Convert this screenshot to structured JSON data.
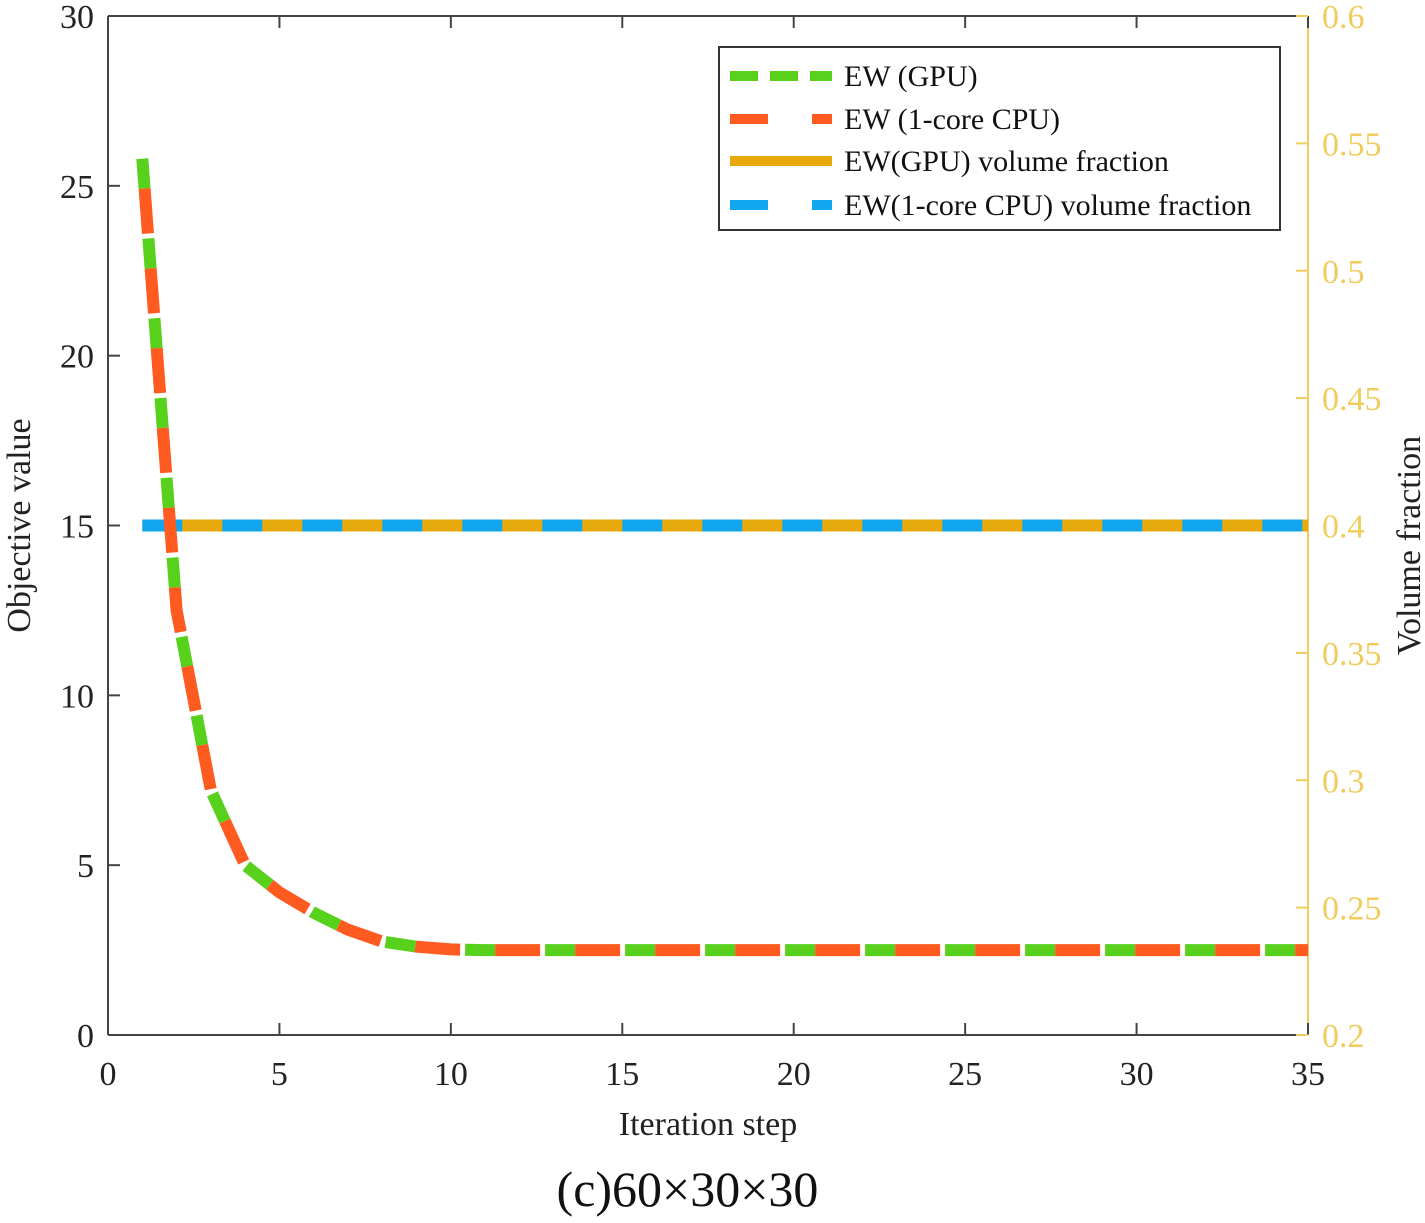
{
  "caption": "(c)60×30×30",
  "colors": {
    "gpu": "#57d11c",
    "cpu": "#ff5a1f",
    "gpu_vf": "#e8a90c",
    "cpu_vf": "#12a6ef",
    "right_axis": "#f0cc5c",
    "axis": "#444444"
  },
  "chart_data": {
    "type": "line",
    "title": "",
    "xlabel": "Iteration step",
    "ylabel": "Objective value",
    "y2label": "Volume fraction",
    "xlim": [
      0,
      35
    ],
    "ylim": [
      0,
      30
    ],
    "y2lim": [
      0.2,
      0.6
    ],
    "xticks": [
      0,
      5,
      10,
      15,
      20,
      25,
      30,
      35
    ],
    "yticks": [
      0,
      5,
      10,
      15,
      20,
      25,
      30
    ],
    "y2ticks": [
      0.2,
      0.25,
      0.3,
      0.35,
      0.4,
      0.45,
      0.5,
      0.55,
      0.6
    ],
    "grid": false,
    "legend_position": "top-right",
    "x": [
      1,
      2,
      3,
      4,
      5,
      6,
      7,
      8,
      9,
      10,
      11,
      12,
      13,
      14,
      15,
      16,
      17,
      18,
      19,
      20,
      21,
      22,
      23,
      24,
      25,
      26,
      27,
      28,
      29,
      30,
      31,
      32,
      33,
      34,
      35
    ],
    "series": [
      {
        "name": "EW (GPU)",
        "axis": "left",
        "style": "dashed",
        "values": [
          25.8,
          12.5,
          7.2,
          5.0,
          4.2,
          3.6,
          3.1,
          2.75,
          2.6,
          2.52,
          2.5,
          2.5,
          2.5,
          2.5,
          2.5,
          2.5,
          2.5,
          2.5,
          2.5,
          2.5,
          2.5,
          2.5,
          2.5,
          2.5,
          2.5,
          2.5,
          2.5,
          2.5,
          2.5,
          2.5,
          2.5,
          2.5,
          2.5,
          2.5,
          2.5
        ]
      },
      {
        "name": "EW (1-core CPU)",
        "axis": "left",
        "style": "dashed",
        "values": [
          25.8,
          12.5,
          7.2,
          5.0,
          4.2,
          3.6,
          3.1,
          2.75,
          2.6,
          2.52,
          2.5,
          2.5,
          2.5,
          2.5,
          2.5,
          2.5,
          2.5,
          2.5,
          2.5,
          2.5,
          2.5,
          2.5,
          2.5,
          2.5,
          2.5,
          2.5,
          2.5,
          2.5,
          2.5,
          2.5,
          2.5,
          2.5,
          2.5,
          2.5,
          2.5
        ]
      },
      {
        "name": "EW(GPU) volume fraction",
        "axis": "right",
        "style": "solid",
        "values": [
          0.4,
          0.4,
          0.4,
          0.4,
          0.4,
          0.4,
          0.4,
          0.4,
          0.4,
          0.4,
          0.4,
          0.4,
          0.4,
          0.4,
          0.4,
          0.4,
          0.4,
          0.4,
          0.4,
          0.4,
          0.4,
          0.4,
          0.4,
          0.4,
          0.4,
          0.4,
          0.4,
          0.4,
          0.4,
          0.4,
          0.4,
          0.4,
          0.4,
          0.4,
          0.4
        ]
      },
      {
        "name": "EW(1-core CPU) volume fraction",
        "axis": "right",
        "style": "dashed",
        "values": [
          0.4,
          0.4,
          0.4,
          0.4,
          0.4,
          0.4,
          0.4,
          0.4,
          0.4,
          0.4,
          0.4,
          0.4,
          0.4,
          0.4,
          0.4,
          0.4,
          0.4,
          0.4,
          0.4,
          0.4,
          0.4,
          0.4,
          0.4,
          0.4,
          0.4,
          0.4,
          0.4,
          0.4,
          0.4,
          0.4,
          0.4,
          0.4,
          0.4,
          0.4,
          0.4
        ]
      }
    ]
  }
}
